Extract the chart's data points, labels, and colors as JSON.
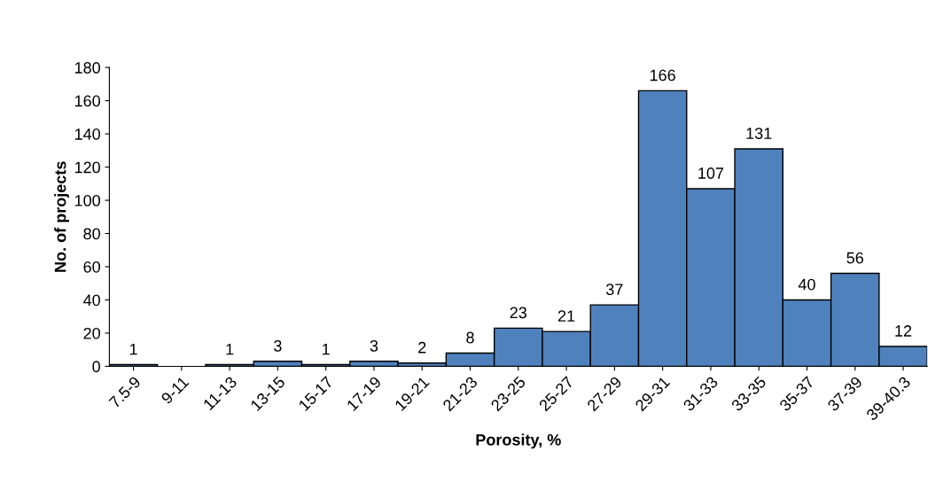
{
  "chart_data": {
    "type": "bar",
    "xlabel": "Porosity, %",
    "ylabel": "No. of projects",
    "categories": [
      "7.5-9",
      "9-11",
      "11-13",
      "13-15",
      "15-17",
      "17-19",
      "19-21",
      "21-23",
      "23-25",
      "25-27",
      "27-29",
      "29-31",
      "31-33",
      "33-35",
      "35-37",
      "37-39",
      "39-40.3"
    ],
    "values": [
      1,
      0,
      1,
      3,
      1,
      3,
      2,
      8,
      23,
      21,
      37,
      166,
      107,
      131,
      40,
      56,
      12
    ],
    "value_labels": [
      "1",
      null,
      "1",
      "3",
      "1",
      "3",
      "2",
      "8",
      "23",
      "21",
      "37",
      "166",
      "107",
      "131",
      "40",
      "56",
      "12"
    ],
    "color": "#4f81bd",
    "ylim": [
      0,
      180
    ],
    "yticks": [
      0,
      20,
      40,
      60,
      80,
      100,
      120,
      140,
      160,
      180
    ],
    "grid": false,
    "legend": false
  }
}
